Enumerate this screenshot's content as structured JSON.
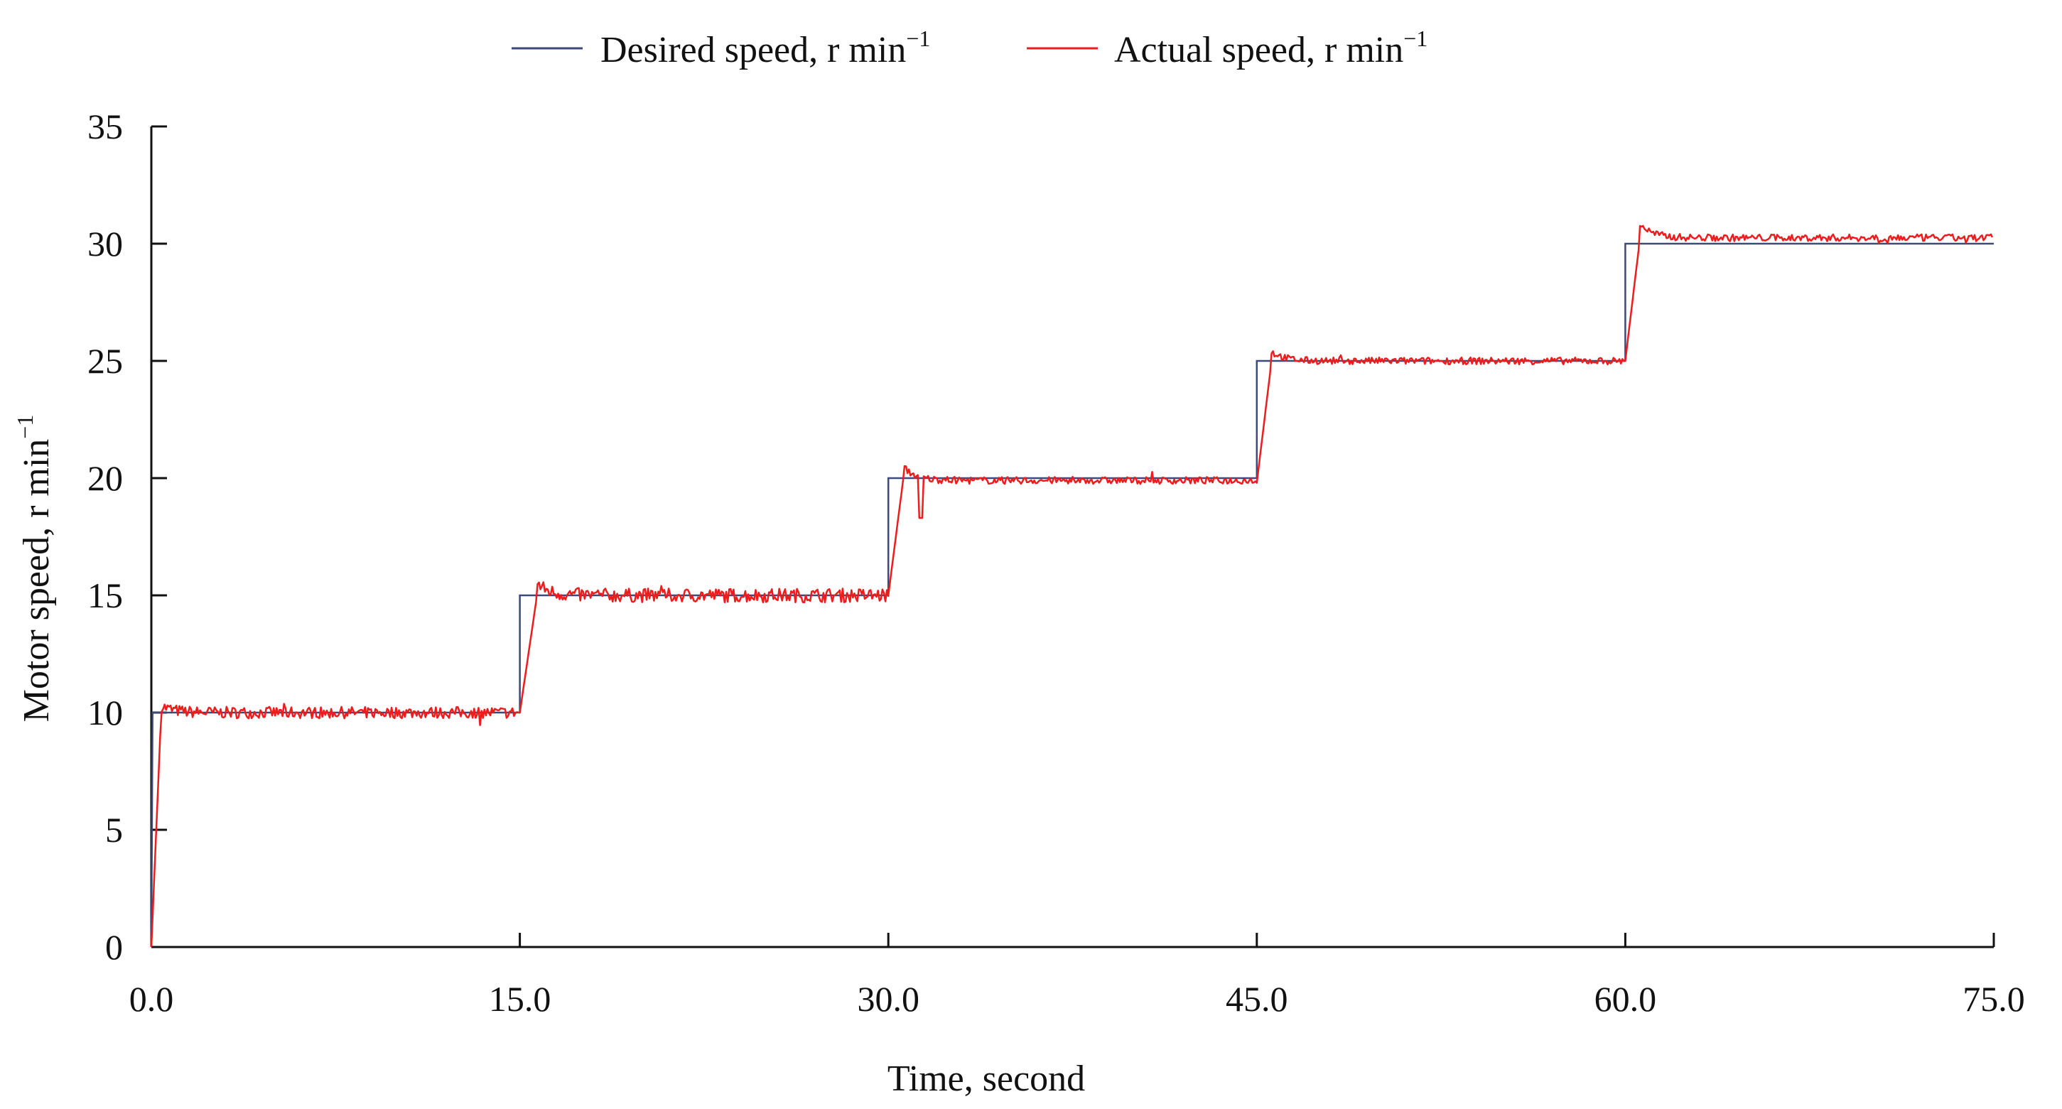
{
  "chart_data": {
    "type": "line",
    "title": "",
    "xlabel": "Time, second",
    "ylabel": "Motor speed, r min",
    "ylabel_sup": "−1",
    "xlim": [
      0,
      75
    ],
    "ylim": [
      0,
      35
    ],
    "x_ticks": [
      0,
      15,
      30,
      45,
      60,
      75
    ],
    "x_tick_labels": [
      "0.0",
      "15.0",
      "30.0",
      "45.0",
      "60.0",
      "75.0"
    ],
    "y_ticks": [
      0,
      5,
      10,
      15,
      20,
      25,
      30,
      35
    ],
    "y_tick_labels": [
      "0",
      "5",
      "10",
      "15",
      "20",
      "25",
      "30",
      "35"
    ],
    "grid": false,
    "legend_position": "top-center",
    "series": [
      {
        "name": "Desired speed, r min",
        "name_sup": "−1",
        "color": "#3c4a7a",
        "x": [
          0,
          0.05,
          15,
          15,
          30,
          30,
          45,
          45,
          60,
          60,
          75
        ],
        "y": [
          0,
          10,
          10,
          15,
          15,
          20,
          20,
          25,
          25,
          30,
          30
        ]
      },
      {
        "name": "Actual speed, r min",
        "name_sup": "−1",
        "color": "#ee1c1c",
        "steps": [
          {
            "start": 0,
            "end": 15,
            "from": 0,
            "level": 10,
            "rise": 0.4,
            "noise": 0.25,
            "overshoot": 0.3
          },
          {
            "start": 15,
            "end": 30,
            "from": 10,
            "level": 15,
            "rise": 0.7,
            "noise": 0.3,
            "overshoot": 0.5
          },
          {
            "start": 30,
            "end": 45,
            "from": 15,
            "level": 19.9,
            "rise": 0.6,
            "noise": 0.15,
            "overshoot": 0.6,
            "dip_at": 31.3,
            "dip_to": 18.3
          },
          {
            "start": 45,
            "end": 60,
            "from": 19.8,
            "level": 25,
            "rise": 0.6,
            "noise": 0.15,
            "overshoot": 0.4
          },
          {
            "start": 60,
            "end": 75,
            "from": 25,
            "level": 30.25,
            "rise": 0.6,
            "noise": 0.15,
            "overshoot": 0.6
          }
        ]
      }
    ]
  }
}
